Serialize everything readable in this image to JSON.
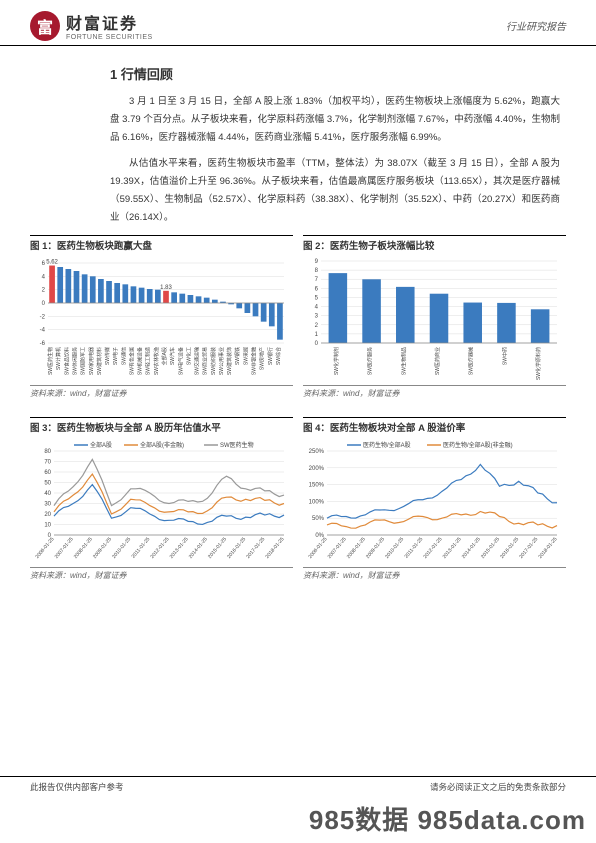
{
  "header": {
    "company_cn": "财富证券",
    "company_en": "FORTUNE SECURITIES",
    "logo_char": "富",
    "doc_type": "行业研究报告"
  },
  "section_title": "1 行情回顾",
  "para1": "3 月 1 日至 3 月 15 日，全部 A 股上涨 1.83%（加权平均），医药生物板块上涨幅度为 5.62%，跑赢大盘 3.79 个百分点。从子板块来看，化学原料药涨幅 3.7%，化学制剂涨幅 7.67%，中药涨幅 4.40%，生物制品 6.16%，医疗器械涨幅 4.44%，医药商业涨幅 5.41%，医疗服务涨幅 6.99%。",
  "para2": "从估值水平来看，医药生物板块市盈率（TTM，整体法）为 38.07X（截至 3 月 15 日），全部 A 股为 19.39X，估值溢价上升至 96.36%。从子板块来看，估值最高属医疗服务板块（113.65X），其次是医疗器械（59.55X）、生物制品（52.57X）、化学原料药（38.38X）、化学制剂（35.52X）、中药（20.27X）和医药商业（26.14X）。",
  "chart1": {
    "title": "图 1：医药生物板块跑赢大盘",
    "ylim": [
      -6,
      6
    ],
    "ytick_step": 2,
    "highlight_color": "#e04848",
    "bar_color": "#3b7bbf",
    "bars": [
      {
        "label": "SW医药生物",
        "v": 5.62,
        "hl": true
      },
      {
        "label": "SW计算机",
        "v": 5.4
      },
      {
        "label": "SW食品饮料",
        "v": 5.1
      },
      {
        "label": "SW休闲服务",
        "v": 4.8
      },
      {
        "label": "SW国防军工",
        "v": 4.3
      },
      {
        "label": "SW家用电器",
        "v": 4.0
      },
      {
        "label": "SW建筑材料",
        "v": 3.6
      },
      {
        "label": "SW传媒",
        "v": 3.3
      },
      {
        "label": "SW电子",
        "v": 3.0
      },
      {
        "label": "SW通信",
        "v": 2.8
      },
      {
        "label": "SW有色金属",
        "v": 2.5
      },
      {
        "label": "SW机械设备",
        "v": 2.3
      },
      {
        "label": "SW轻工制造",
        "v": 2.1
      },
      {
        "label": "SW农林牧渔",
        "v": 2.0
      },
      {
        "label": "全部A股",
        "v": 1.83,
        "hl": true
      },
      {
        "label": "SW汽车",
        "v": 1.6
      },
      {
        "label": "SW电气设备",
        "v": 1.4
      },
      {
        "label": "SW化工",
        "v": 1.2
      },
      {
        "label": "SW交通运输",
        "v": 1.0
      },
      {
        "label": "SW商业贸易",
        "v": 0.8
      },
      {
        "label": "SW纺织服装",
        "v": 0.5
      },
      {
        "label": "SW公用事业",
        "v": 0.2
      },
      {
        "label": "SW建筑装饰",
        "v": -0.2
      },
      {
        "label": "SW钢铁",
        "v": -0.8
      },
      {
        "label": "SW采掘",
        "v": -1.5
      },
      {
        "label": "SW非银金融",
        "v": -2.0
      },
      {
        "label": "SW房地产",
        "v": -2.8
      },
      {
        "label": "SW银行",
        "v": -3.5
      },
      {
        "label": "SW综合",
        "v": -5.5
      }
    ],
    "source": "资料来源：wind，财富证券"
  },
  "chart2": {
    "title": "图 2：医药生物子板块涨幅比较",
    "ylim": [
      0,
      9
    ],
    "ytick_step": 1,
    "bar_color": "#3b7bbf",
    "bars": [
      {
        "label": "SW化学制剂",
        "v": 7.67
      },
      {
        "label": "SW医疗服务",
        "v": 6.99
      },
      {
        "label": "SW生物制品",
        "v": 6.16
      },
      {
        "label": "SW医药商业",
        "v": 5.41
      },
      {
        "label": "SW医疗器械",
        "v": 4.44
      },
      {
        "label": "SW中药",
        "v": 4.4
      },
      {
        "label": "SW化学原料药",
        "v": 3.7
      }
    ],
    "source": "资料来源：wind，财富证券"
  },
  "chart3": {
    "title": "图 3：医药生物板块与全部 A 股历年估值水平",
    "ylim": [
      0,
      80
    ],
    "ytick_step": 10,
    "x_labels": [
      "2006-01-25",
      "2007-01-25",
      "2008-01-25",
      "2009-01-25",
      "2010-01-25",
      "2011-01-25",
      "2012-01-25",
      "2013-01-25",
      "2014-01-25",
      "2015-01-25",
      "2016-01-25",
      "2017-01-25",
      "2018-01-25"
    ],
    "series": [
      {
        "name": "全部A股",
        "color": "#3b7bbf",
        "data": [
          18,
          30,
          48,
          16,
          26,
          20,
          14,
          13,
          12,
          18,
          17,
          19,
          19
        ]
      },
      {
        "name": "全部A股(非金融)",
        "color": "#e08a3a",
        "data": [
          22,
          38,
          58,
          20,
          34,
          28,
          22,
          22,
          23,
          36,
          34,
          33,
          30
        ]
      },
      {
        "name": "SW医药生物",
        "color": "#999999",
        "data": [
          28,
          46,
          72,
          28,
          44,
          40,
          30,
          32,
          35,
          56,
          44,
          42,
          38
        ]
      }
    ],
    "source": "资料来源：wind，财富证券"
  },
  "chart4": {
    "title": "图 4：医药生物板块对全部 A 股溢价率",
    "ylim": [
      0,
      250
    ],
    "ytick_step": 50,
    "x_labels": [
      "2006-01-25",
      "2007-01-25",
      "2008-01-25",
      "2009-01-25",
      "2010-01-25",
      "2011-01-25",
      "2012-01-25",
      "2013-01-25",
      "2014-01-25",
      "2015-01-25",
      "2016-01-25",
      "2017-01-25",
      "2018-01-25"
    ],
    "series": [
      {
        "name": "医药生物/全部A股",
        "color": "#3b7bbf",
        "data": [
          50,
          55,
          60,
          75,
          85,
          105,
          130,
          165,
          210,
          145,
          160,
          125,
          96
        ]
      },
      {
        "name": "医药生物/全部A股(非金融)",
        "color": "#e08a3a",
        "data": [
          30,
          25,
          30,
          45,
          40,
          55,
          50,
          60,
          70,
          55,
          35,
          30,
          28
        ]
      }
    ],
    "source": "资料来源：wind，财富证券"
  },
  "footer": {
    "left": "此报告仅供内部客户参考",
    "right": "请务必阅读正文之后的免责条款部分"
  },
  "watermark": "985数据 985data.com"
}
